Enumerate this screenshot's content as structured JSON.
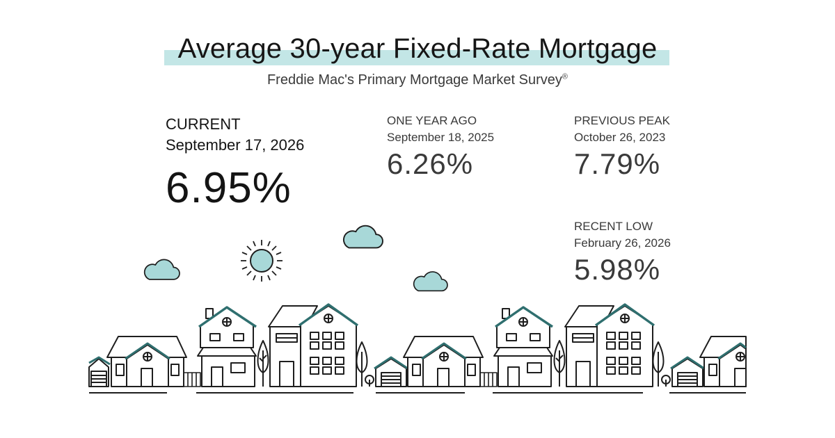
{
  "header": {
    "title": "Average 30-year Fixed-Rate Mortgage",
    "subtitle": "Freddie Mac's Primary Mortgage Market Survey",
    "subtitle_mark": "®"
  },
  "stats": {
    "current": {
      "label": "CURRENT",
      "date": "September 17, 2026",
      "value": "6.95%"
    },
    "one_year_ago": {
      "label": "ONE YEAR AGO",
      "date": "September 18, 2025",
      "value": "6.26%"
    },
    "previous_peak": {
      "label": "PREVIOUS PEAK",
      "date": "October 26, 2023",
      "value": "7.79%"
    },
    "recent_low": {
      "label": "RECENT LOW",
      "date": "February 26, 2026",
      "value": "5.98%"
    }
  },
  "colors": {
    "accent": "#a8d8d8",
    "highlight": "#c3e6e6",
    "stroke": "#1e1e1e"
  },
  "illustration": {
    "icons": [
      "sun-icon",
      "cloud-icon",
      "house-icon",
      "tree-icon",
      "garage-icon"
    ]
  }
}
